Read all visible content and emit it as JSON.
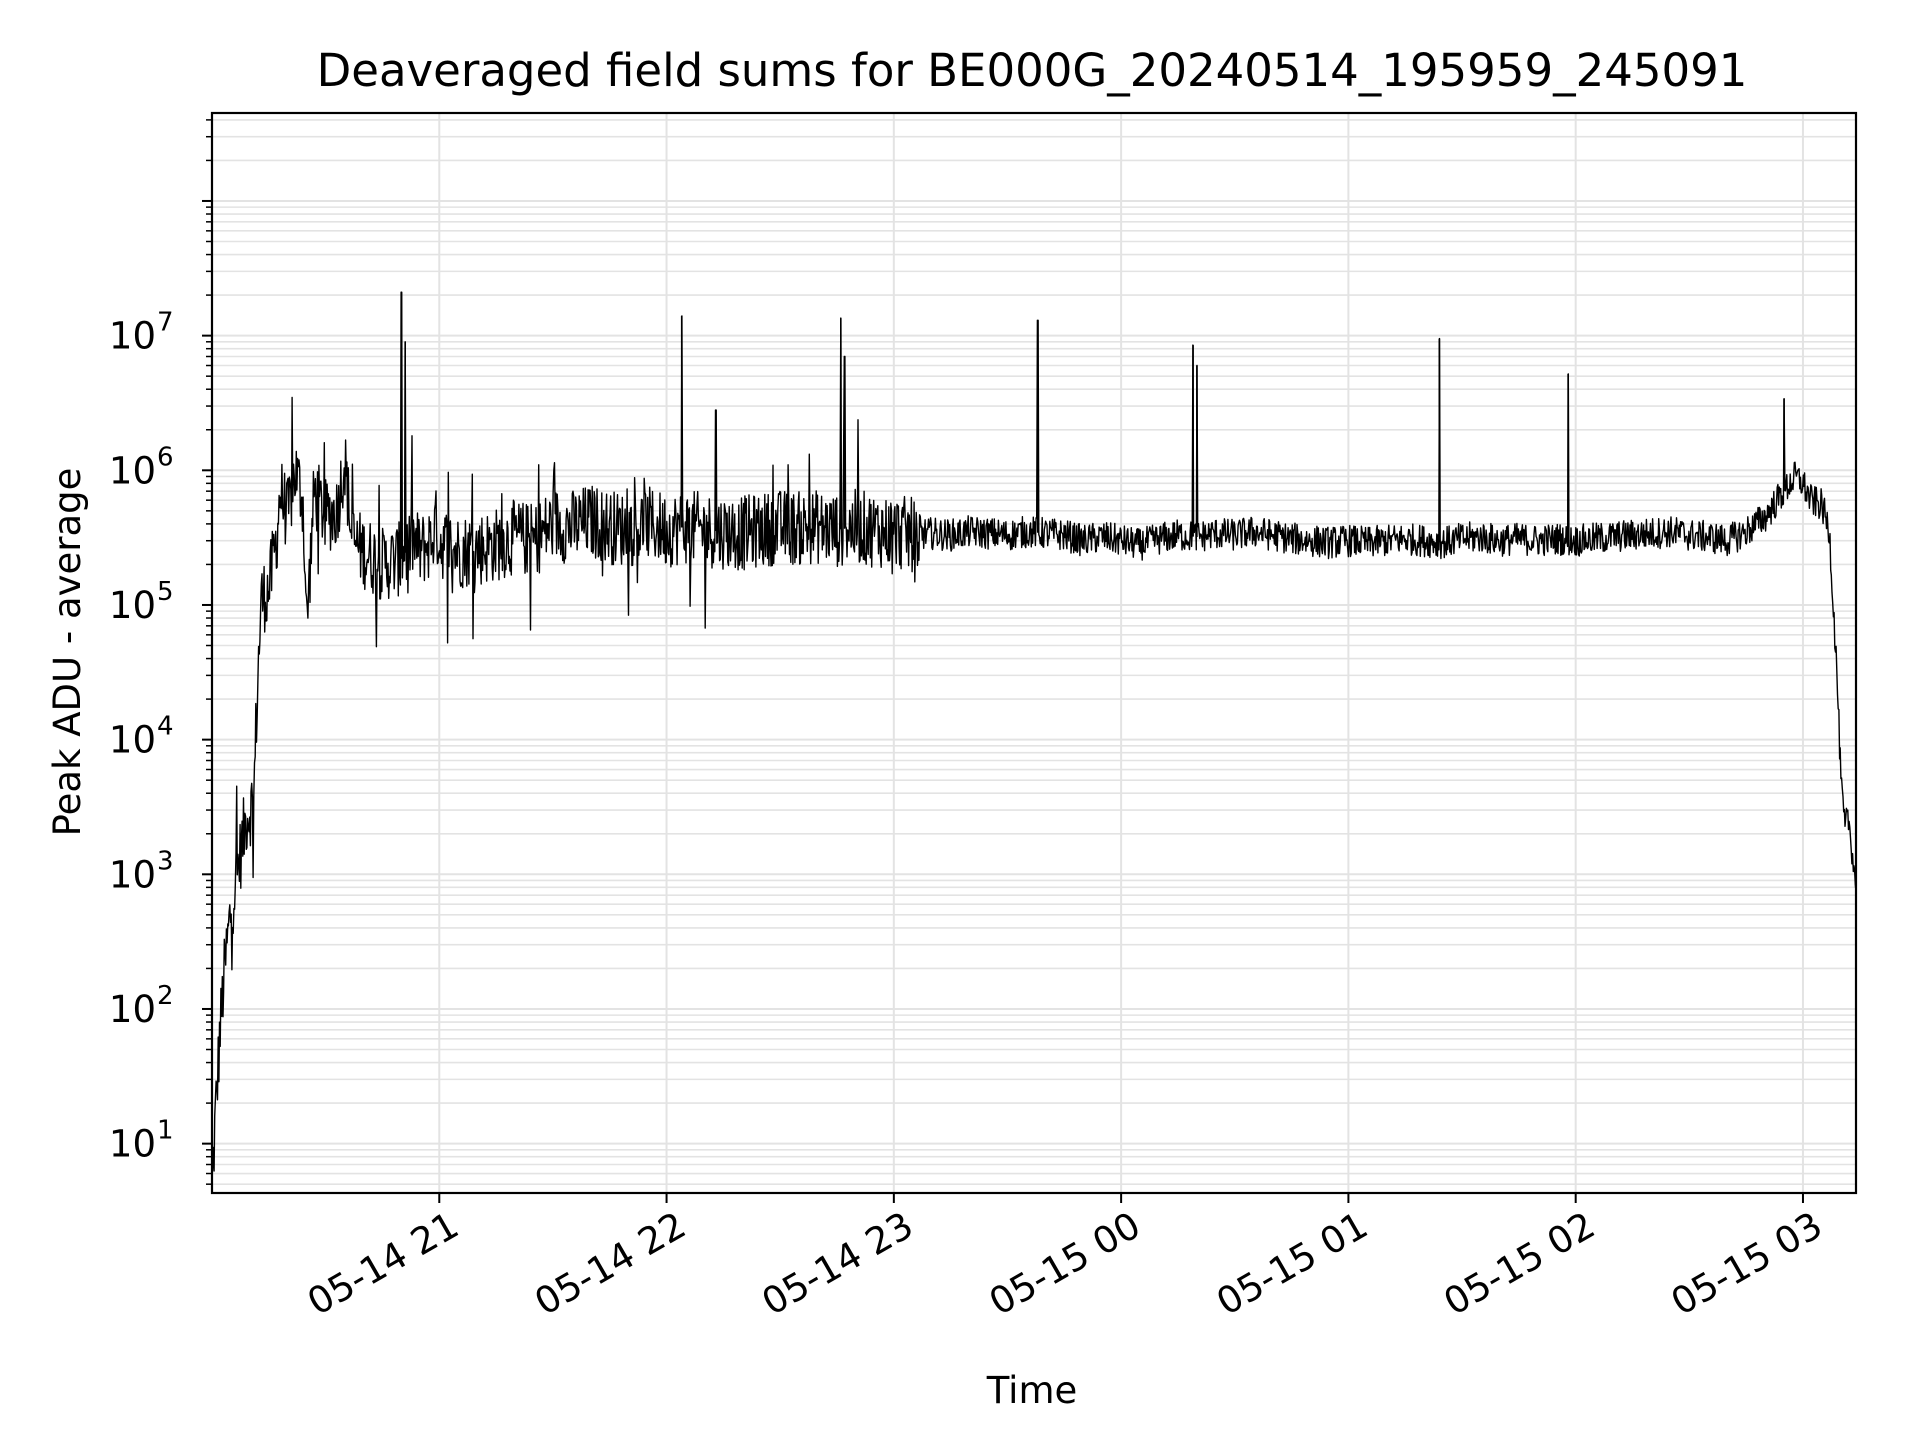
{
  "chart_data": {
    "type": "line",
    "title": "Deaveraged field sums for BE000G_20240514_195959_245091",
    "xlabel": "Time",
    "ylabel": "Peak ADU - average",
    "y_scale": "log",
    "ylim": [
      4.3,
      450000000
    ],
    "xlim": [
      "05-14 20:00",
      "05-15 03:14"
    ],
    "grid": "on (major and minor, light gray)",
    "line_color": "#000000",
    "x_ticks": [
      {
        "t": "05-14 21:00",
        "label": "05-14 21"
      },
      {
        "t": "05-14 22:00",
        "label": "05-14 22"
      },
      {
        "t": "05-14 23:00",
        "label": "05-14 23"
      },
      {
        "t": "05-15 00:00",
        "label": "05-15 00"
      },
      {
        "t": "05-15 01:00",
        "label": "05-15 01"
      },
      {
        "t": "05-15 02:00",
        "label": "05-15 02"
      },
      {
        "t": "05-15 03:00",
        "label": "05-15 03"
      }
    ],
    "y_ticks": [
      {
        "value": 10,
        "base": "10",
        "exp": "1"
      },
      {
        "value": 100,
        "base": "10",
        "exp": "2"
      },
      {
        "value": 1000,
        "base": "10",
        "exp": "3"
      },
      {
        "value": 10000,
        "base": "10",
        "exp": "4"
      },
      {
        "value": 100000,
        "base": "10",
        "exp": "5"
      },
      {
        "value": 1000000,
        "base": "10",
        "exp": "6"
      },
      {
        "value": 10000000,
        "base": "10",
        "exp": "7"
      }
    ],
    "series": [
      {
        "points": [
          [
            "05-14 20:00",
            4.5
          ],
          [
            "05-14 20:01",
            18
          ],
          [
            "05-14 20:02",
            60
          ],
          [
            "05-14 20:03",
            150
          ],
          [
            "05-14 20:04",
            300
          ],
          [
            "05-14 20:05",
            550
          ],
          [
            "05-14 20:06",
            800
          ],
          [
            "05-14 20:07",
            1200
          ],
          [
            "05-14 20:08",
            1700
          ],
          [
            "05-14 20:09",
            2600
          ],
          [
            "05-14 20:11",
            3500
          ],
          [
            "05-14 20:12",
            25000
          ],
          [
            "05-14 20:13",
            110000
          ],
          [
            "05-14 20:15",
            130000
          ],
          [
            "05-14 20:17",
            300000
          ],
          [
            "05-14 20:18",
            700000
          ],
          [
            "05-14 20:20",
            450000
          ],
          [
            "05-14 20:22",
            1000000
          ],
          [
            "05-14 20:24",
            600000
          ],
          [
            "05-14 20:25",
            70000
          ],
          [
            "05-14 20:27",
            700000
          ],
          [
            "05-14 20:30",
            450000
          ],
          [
            "05-14 20:33",
            500000
          ],
          [
            "05-14 20:35",
            1200000
          ],
          [
            "05-14 20:37",
            300000
          ],
          [
            "05-14 20:40",
            250000
          ],
          [
            "05-14 20:45",
            200000
          ],
          [
            "05-14 20:50",
            220000
          ],
          [
            "05-14 20:53",
            300000
          ],
          [
            "05-14 20:55",
            250000
          ],
          [
            "05-14 20:58",
            300000
          ],
          [
            "05-14 20:59",
            400000
          ],
          [
            "05-14 21:00",
            300000
          ],
          [
            "05-14 21:05",
            250000
          ],
          [
            "05-14 21:10",
            260000
          ],
          [
            "05-14 21:15",
            280000
          ],
          [
            "05-14 21:20",
            320000
          ],
          [
            "05-14 21:25",
            300000
          ],
          [
            "05-14 21:30",
            400000
          ],
          [
            "05-14 21:35",
            380000
          ],
          [
            "05-14 21:40",
            420000
          ],
          [
            "05-14 21:45",
            380000
          ],
          [
            "05-14 21:50",
            360000
          ],
          [
            "05-14 21:55",
            400000
          ],
          [
            "05-14 22:00",
            360000
          ],
          [
            "05-14 22:05",
            380000
          ],
          [
            "05-14 22:10",
            360000
          ],
          [
            "05-14 22:15",
            350000
          ],
          [
            "05-14 22:20",
            340000
          ],
          [
            "05-14 22:25",
            360000
          ],
          [
            "05-14 22:30",
            380000
          ],
          [
            "05-14 22:35",
            370000
          ],
          [
            "05-14 22:40",
            380000
          ],
          [
            "05-14 22:45",
            360000
          ],
          [
            "05-14 22:50",
            380000
          ],
          [
            "05-14 22:55",
            360000
          ],
          [
            "05-14 23:00",
            350000
          ],
          [
            "05-14 23:05",
            330000
          ],
          [
            "05-14 23:10",
            340000
          ],
          [
            "05-14 23:15",
            330000
          ],
          [
            "05-14 23:20",
            350000
          ],
          [
            "05-14 23:25",
            340000
          ],
          [
            "05-14 23:30",
            330000
          ],
          [
            "05-14 23:35",
            350000
          ],
          [
            "05-14 23:40",
            340000
          ],
          [
            "05-14 23:45",
            330000
          ],
          [
            "05-14 23:50",
            300000
          ],
          [
            "05-14 23:55",
            320000
          ],
          [
            "05-15 00:00",
            300000
          ],
          [
            "05-15 00:05",
            280000
          ],
          [
            "05-15 00:10",
            310000
          ],
          [
            "05-15 00:15",
            330000
          ],
          [
            "05-15 00:20",
            320000
          ],
          [
            "05-15 00:25",
            340000
          ],
          [
            "05-15 00:30",
            330000
          ],
          [
            "05-15 00:35",
            350000
          ],
          [
            "05-15 00:40",
            330000
          ],
          [
            "05-15 00:45",
            310000
          ],
          [
            "05-15 00:50",
            300000
          ],
          [
            "05-15 00:55",
            290000
          ],
          [
            "05-15 01:00",
            300000
          ],
          [
            "05-15 01:05",
            290000
          ],
          [
            "05-15 01:10",
            300000
          ],
          [
            "05-15 01:15",
            310000
          ],
          [
            "05-15 01:20",
            300000
          ],
          [
            "05-15 01:25",
            290000
          ],
          [
            "05-15 01:30",
            310000
          ],
          [
            "05-15 01:35",
            320000
          ],
          [
            "05-15 01:40",
            300000
          ],
          [
            "05-15 01:45",
            310000
          ],
          [
            "05-15 01:50",
            300000
          ],
          [
            "05-15 01:55",
            310000
          ],
          [
            "05-15 02:00",
            300000
          ],
          [
            "05-15 02:05",
            310000
          ],
          [
            "05-15 02:10",
            320000
          ],
          [
            "05-15 02:15",
            330000
          ],
          [
            "05-15 02:20",
            340000
          ],
          [
            "05-15 02:25",
            350000
          ],
          [
            "05-15 02:30",
            330000
          ],
          [
            "05-15 02:35",
            320000
          ],
          [
            "05-15 02:40",
            300000
          ],
          [
            "05-15 02:45",
            350000
          ],
          [
            "05-15 02:50",
            450000
          ],
          [
            "05-15 02:55",
            700000
          ],
          [
            "05-15 02:58",
            900000
          ],
          [
            "05-15 03:00",
            800000
          ],
          [
            "05-15 03:02",
            600000
          ],
          [
            "05-15 03:05",
            550000
          ],
          [
            "05-15 03:07",
            350000
          ],
          [
            "05-15 03:08",
            100000
          ],
          [
            "05-15 03:09",
            30000
          ],
          [
            "05-15 03:10",
            5000
          ],
          [
            "05-15 03:11",
            2200
          ],
          [
            "05-15 03:12",
            2600
          ],
          [
            "05-15 03:13",
            1500
          ],
          [
            "05-15 03:14",
            800
          ]
        ]
      }
    ],
    "spikes": [
      [
        "05-14 20:50",
        21000000
      ],
      [
        "05-14 20:51",
        9000000
      ],
      [
        "05-14 22:04",
        14000000
      ],
      [
        "05-14 22:13",
        2800000
      ],
      [
        "05-14 22:46",
        13500000
      ],
      [
        "05-14 22:47",
        7000000
      ],
      [
        "05-14 23:38",
        13000000
      ],
      [
        "05-15 00:19",
        8500000
      ],
      [
        "05-15 00:20",
        6000000
      ],
      [
        "05-15 01:24",
        9500000
      ],
      [
        "05-15 01:58",
        5200000
      ],
      [
        "05-15 02:55",
        3400000
      ]
    ]
  }
}
